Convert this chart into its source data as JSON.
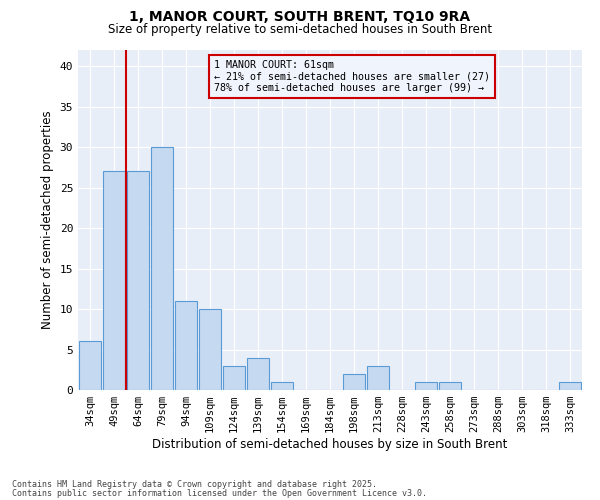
{
  "title": "1, MANOR COURT, SOUTH BRENT, TQ10 9RA",
  "subtitle": "Size of property relative to semi-detached houses in South Brent",
  "xlabel": "Distribution of semi-detached houses by size in South Brent",
  "ylabel": "Number of semi-detached properties",
  "categories": [
    "34sqm",
    "49sqm",
    "64sqm",
    "79sqm",
    "94sqm",
    "109sqm",
    "124sqm",
    "139sqm",
    "154sqm",
    "169sqm",
    "184sqm",
    "198sqm",
    "213sqm",
    "228sqm",
    "243sqm",
    "258sqm",
    "273sqm",
    "288sqm",
    "303sqm",
    "318sqm",
    "333sqm"
  ],
  "values": [
    6,
    27,
    27,
    30,
    11,
    10,
    3,
    4,
    1,
    0,
    0,
    2,
    3,
    0,
    1,
    1,
    0,
    0,
    0,
    0,
    1
  ],
  "bar_color": "#c5d9f0",
  "bar_edge_color": "#5b9bd5",
  "property_sqm": 61,
  "pct_smaller": 21,
  "n_smaller": 27,
  "pct_larger": 78,
  "n_larger": 99,
  "annotation_label": "1 MANOR COURT: 61sqm",
  "annotation_smaller": "← 21% of semi-detached houses are smaller (27)",
  "annotation_larger": "78% of semi-detached houses are larger (99) →",
  "ylim": [
    0,
    42
  ],
  "yticks": [
    0,
    5,
    10,
    15,
    20,
    25,
    30,
    35,
    40
  ],
  "footnote1": "Contains HM Land Registry data © Crown copyright and database right 2025.",
  "footnote2": "Contains public sector information licensed under the Open Government Licence v3.0.",
  "plot_bg_color": "#e8eef8",
  "fig_bg_color": "#ffffff",
  "grid_color": "#ffffff",
  "box_facecolor": "#f0f4fc",
  "box_edge_color": "#cc0000",
  "vline_color": "#cc0000"
}
